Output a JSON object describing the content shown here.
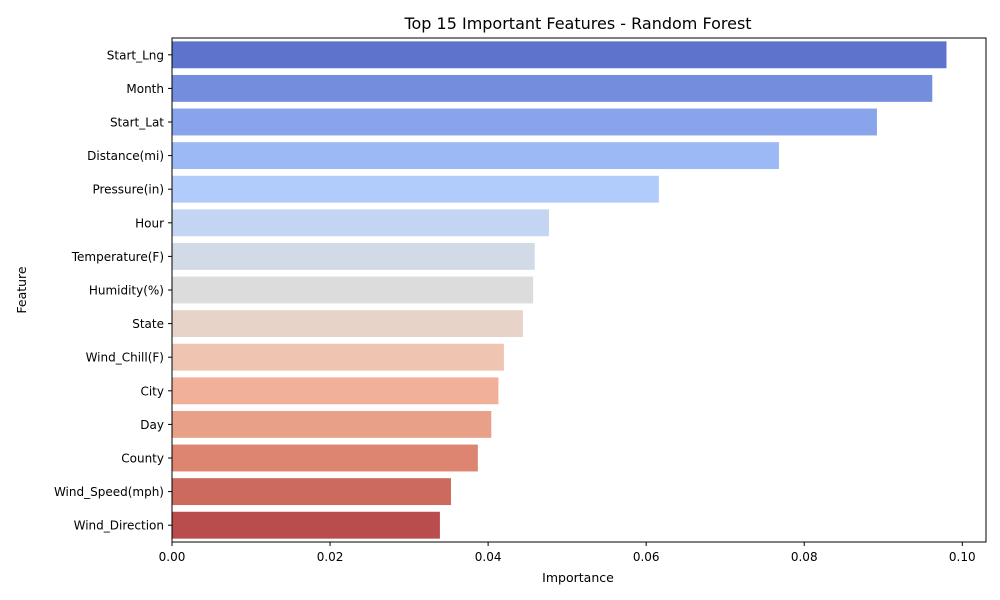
{
  "chart_data": {
    "type": "bar",
    "orientation": "horizontal",
    "title": "Top 15 Important Features - Random Forest",
    "xlabel": "Importance",
    "ylabel": "Feature",
    "xlim": [
      0,
      0.103
    ],
    "xticks": [
      0.0,
      0.02,
      0.04,
      0.06,
      0.08,
      0.1
    ],
    "xtick_labels": [
      "0.00",
      "0.02",
      "0.04",
      "0.06",
      "0.08",
      "0.10"
    ],
    "grid": false,
    "legend": "none",
    "colormap": "coolwarm",
    "categories": [
      "Start_Lng",
      "Month",
      "Start_Lat",
      "Distance(mi)",
      "Pressure(in)",
      "Hour",
      "Temperature(F)",
      "Humidity(%)",
      "State",
      "Wind_Chill(F)",
      "City",
      "Day",
      "County",
      "Wind_Speed(mph)",
      "Wind_Direction"
    ],
    "values": [
      0.098,
      0.0962,
      0.0892,
      0.0768,
      0.0616,
      0.0477,
      0.0459,
      0.0457,
      0.0444,
      0.042,
      0.0413,
      0.0404,
      0.0387,
      0.0353,
      0.0339
    ],
    "colors": [
      "#5d73cc",
      "#748ddc",
      "#89a4ea",
      "#9db9f5",
      "#b1cbfa",
      "#c4d5f3",
      "#d3dae7",
      "#dddcdc",
      "#e8d3c9",
      "#efc5b2",
      "#f0b198",
      "#e8a088",
      "#dd8571",
      "#cd6a5e",
      "#b94c4c"
    ]
  }
}
